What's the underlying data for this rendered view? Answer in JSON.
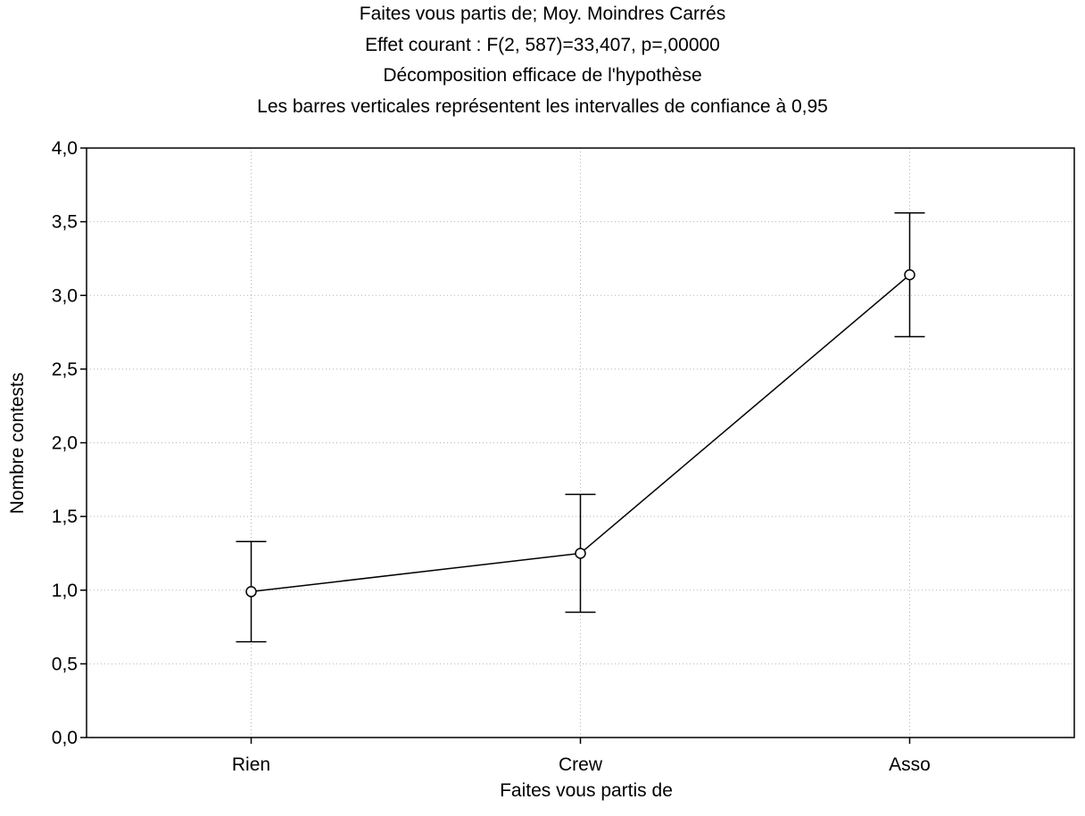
{
  "chart_data": {
    "type": "line",
    "title": [
      "Faites vous partis de; Moy. Moindres Carrés",
      "Effet courant : F(2, 587)=33,407, p=,00000",
      "Décomposition efficace de l'hypothèse",
      "Les barres verticales représentent les intervalles de confiance à 0,95"
    ],
    "xlabel": "Faites vous partis de",
    "ylabel": "Nombre contests",
    "categories": [
      "Rien",
      "Crew",
      "Asso"
    ],
    "series": [
      {
        "values": [
          0.99,
          1.25,
          3.14
        ],
        "ci_lower": [
          0.65,
          0.85,
          2.72
        ],
        "ci_upper": [
          1.33,
          1.65,
          3.56
        ]
      }
    ],
    "ylim": [
      0,
      4
    ],
    "yticks": [
      "0,0",
      "0,5",
      "1,0",
      "1,5",
      "2,0",
      "2,5",
      "3,0",
      "3,5",
      "4,0"
    ],
    "grid": true,
    "legend": "none",
    "colors": {
      "line": "#000000",
      "marker_fill": "#ffffff",
      "grid": "#b4b4b4"
    }
  }
}
